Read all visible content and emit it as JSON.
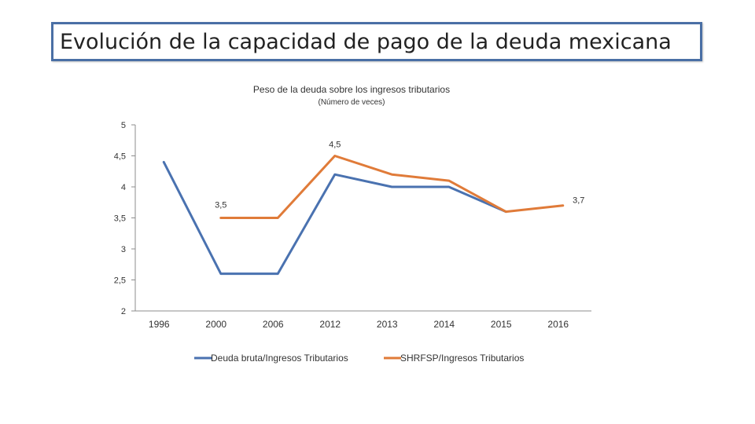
{
  "slide": {
    "title": "Evolución de la capacidad de pago de la deuda mexicana"
  },
  "chart_data": {
    "type": "line",
    "title": "Peso de la deuda sobre los ingresos tributarios",
    "subtitle": "(Número de veces)",
    "categories": [
      "1996",
      "2000",
      "2006",
      "2012",
      "2013",
      "2014",
      "2015",
      "2016"
    ],
    "ylim": [
      2,
      5
    ],
    "yticks": [
      "5",
      "4,5",
      "4",
      "3,5",
      "3",
      "2,5",
      "2"
    ],
    "ytick_values": [
      5,
      4.5,
      4,
      3.5,
      3,
      2.5,
      2
    ],
    "grid": false,
    "legend_position": "bottom",
    "series": [
      {
        "name": "Deuda bruta/Ingresos Tributarios",
        "color": "#4a72b0",
        "values": [
          4.4,
          2.6,
          2.6,
          4.2,
          4.0,
          4.0,
          3.6,
          null
        ]
      },
      {
        "name": "SHRFSP/Ingresos Tributarios",
        "color": "#e07b39",
        "values": [
          null,
          3.5,
          3.5,
          4.5,
          4.2,
          4.1,
          3.6,
          3.7
        ]
      }
    ],
    "annotations": [
      {
        "series": 1,
        "index": 1,
        "label": "3,5"
      },
      {
        "series": 1,
        "index": 3,
        "label": "4,5"
      },
      {
        "series": 1,
        "index": 7,
        "label": "3,7"
      }
    ]
  }
}
